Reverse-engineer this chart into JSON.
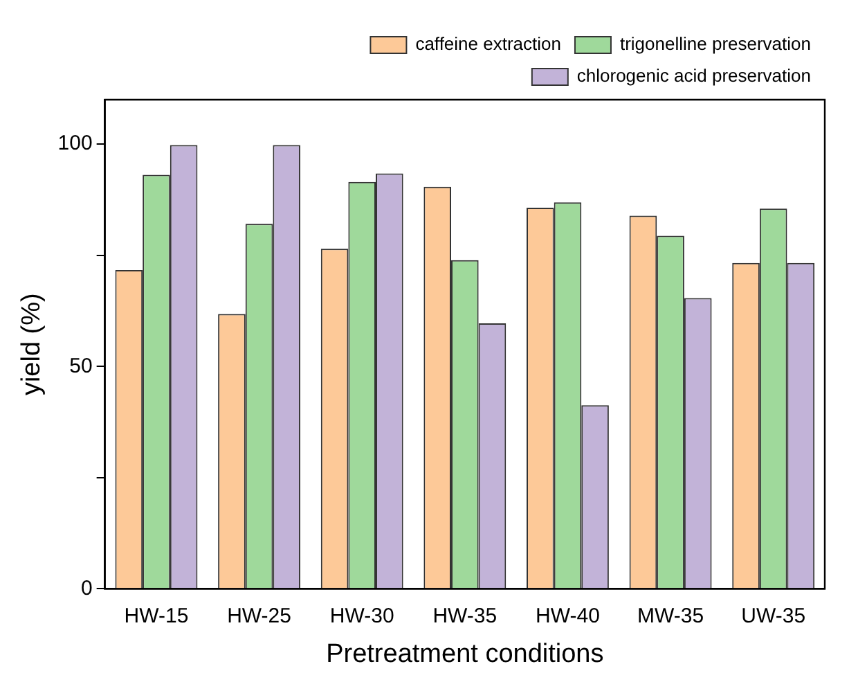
{
  "chart_data": {
    "type": "bar",
    "xlabel": "Pretreatment conditions",
    "ylabel": "yield (%)",
    "categories": [
      "HW-15",
      "HW-25",
      "HW-30",
      "HW-35",
      "HW-40",
      "MW-35",
      "UW-35"
    ],
    "series": [
      {
        "name": "caffeine extraction",
        "color": "#fdc998",
        "values": [
          71.7,
          61.8,
          76.5,
          90.4,
          85.7,
          83.9,
          73.3
        ]
      },
      {
        "name": "trigonelline preservation",
        "color": "#9fd99b",
        "values": [
          93.1,
          82.1,
          91.5,
          73.9,
          86.9,
          79.4,
          85.5
        ]
      },
      {
        "name": "chlorogenic acid preservation",
        "color": "#c2b3d8",
        "values": [
          99.8,
          99.8,
          93.4,
          59.7,
          41.3,
          65.4,
          73.3
        ]
      }
    ],
    "ylim": [
      0,
      110
    ],
    "yticks": [
      0,
      {
        "value": 25,
        "label": null
      },
      50,
      {
        "value": 75,
        "label": null
      },
      100
    ],
    "grid": false,
    "legend": "top right"
  }
}
